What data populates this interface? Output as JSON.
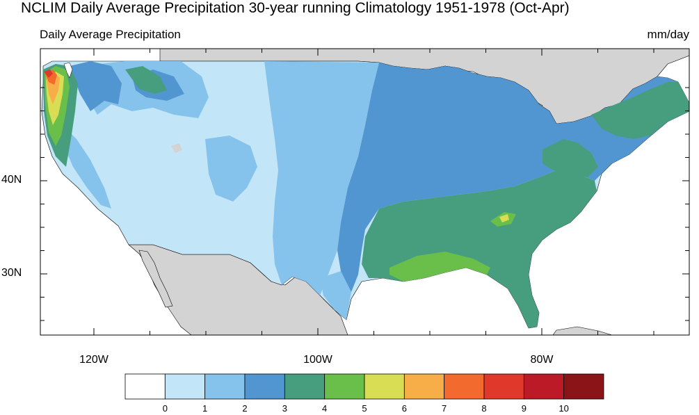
{
  "title": "NCLIM Daily Average Precipitation 30-year running Climatology 1951-1978 (Oct-Apr)",
  "subtitle_left": "Daily Average Precipitation",
  "subtitle_right": "mm/day",
  "axes": {
    "lat_labels": [
      {
        "label": "40N",
        "value": 40
      },
      {
        "label": "30N",
        "value": 30
      }
    ],
    "lon_labels": [
      {
        "label": "120W",
        "value": -120
      },
      {
        "label": "100W",
        "value": -100
      },
      {
        "label": "80W",
        "value": -80
      }
    ]
  },
  "colorbar": {
    "colors": [
      "#ffffff",
      "#c3e5f8",
      "#86c3ec",
      "#5196d0",
      "#479e7e",
      "#6abf4b",
      "#d8dd54",
      "#f7ae48",
      "#f26a2d",
      "#e1382c",
      "#bc1a26",
      "#8b1419"
    ],
    "labels": [
      "0",
      "1",
      "2",
      "3",
      "4",
      "5",
      "6",
      "7",
      "8",
      "9",
      "10"
    ]
  }
}
